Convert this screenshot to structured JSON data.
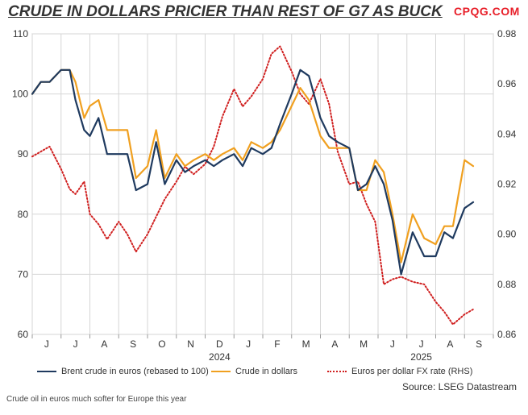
{
  "title": "CRUDE IN DOLLARS PRICIER THAN REST OF G7 AS BUCK",
  "brand": "CPQG.COM",
  "source": "Source: LSEG Datastream",
  "footer": "Crude oil in euros much softer for Europe this year",
  "chart_data": {
    "type": "line",
    "x_axis": {
      "months": [
        "J",
        "J",
        "A",
        "S",
        "O",
        "N",
        "D",
        "J",
        "F",
        "M",
        "A",
        "M",
        "J",
        "J",
        "A",
        "S"
      ],
      "years": [
        "2024",
        "2025"
      ]
    },
    "y_left": {
      "ylim": [
        60,
        110
      ],
      "ticks": [
        60,
        70,
        80,
        90,
        100,
        110
      ]
    },
    "y_right": {
      "ylim": [
        0.86,
        0.98
      ],
      "ticks": [
        0.86,
        0.88,
        0.9,
        0.92,
        0.94,
        0.96,
        0.98
      ]
    },
    "grid": true,
    "legend_position": "bottom",
    "series": [
      {
        "name": "Brent crude in euros (rebased to 100)",
        "color": "#1f3a5f",
        "style": "solid",
        "axis": "left",
        "x": [
          0,
          0.3,
          0.6,
          1,
          1.3,
          1.5,
          1.8,
          2,
          2.3,
          2.6,
          3,
          3.3,
          3.6,
          4,
          4.3,
          4.6,
          5,
          5.3,
          5.6,
          6,
          6.3,
          6.6,
          7,
          7.3,
          7.6,
          8,
          8.3,
          8.6,
          9,
          9.3,
          9.6,
          10,
          10.3,
          10.6,
          11,
          11.3,
          11.6,
          11.9,
          12.2,
          12.5,
          12.8,
          13.2,
          13.6,
          14,
          14.3,
          14.6,
          15,
          15.3
        ],
        "y": [
          100,
          102,
          102,
          104,
          104,
          99,
          94,
          93,
          96,
          90,
          90,
          90,
          84,
          85,
          92,
          85,
          89,
          87,
          88,
          89,
          88,
          89,
          90,
          88,
          91,
          90,
          91,
          95,
          100,
          104,
          103,
          96,
          93,
          92,
          91,
          84,
          85,
          88,
          85,
          79,
          70,
          77,
          73,
          73,
          77,
          76,
          81,
          82
        ]
      },
      {
        "name": "Crude in dollars",
        "color": "#f0a020",
        "style": "solid",
        "axis": "left",
        "x": [
          0,
          0.3,
          0.6,
          1,
          1.3,
          1.5,
          1.8,
          2,
          2.3,
          2.6,
          3,
          3.3,
          3.6,
          4,
          4.3,
          4.6,
          5,
          5.3,
          5.6,
          6,
          6.3,
          6.6,
          7,
          7.3,
          7.6,
          8,
          8.3,
          8.6,
          9,
          9.3,
          9.6,
          10,
          10.3,
          10.6,
          11,
          11.3,
          11.6,
          11.9,
          12.2,
          12.5,
          12.8,
          13.2,
          13.6,
          14,
          14.3,
          14.6,
          15,
          15.3
        ],
        "y": [
          100,
          102,
          102,
          104,
          104,
          102,
          96,
          98,
          99,
          94,
          94,
          94,
          86,
          88,
          94,
          86,
          90,
          88,
          89,
          90,
          89,
          90,
          91,
          89,
          92,
          91,
          92,
          94,
          98,
          101,
          99,
          93,
          91,
          91,
          91,
          84,
          84,
          89,
          87,
          80,
          72,
          80,
          76,
          75,
          78,
          78,
          89,
          88
        ]
      },
      {
        "name": "Euros per dollar FX rate (RHS)",
        "color": "#d02020",
        "style": "dotted",
        "axis": "right",
        "x": [
          0,
          0.3,
          0.6,
          1,
          1.3,
          1.5,
          1.8,
          2,
          2.3,
          2.6,
          3,
          3.3,
          3.6,
          4,
          4.3,
          4.6,
          5,
          5.3,
          5.6,
          6,
          6.3,
          6.6,
          7,
          7.3,
          7.6,
          8,
          8.3,
          8.6,
          9,
          9.3,
          9.6,
          10,
          10.3,
          10.6,
          11,
          11.3,
          11.6,
          11.9,
          12.2,
          12.5,
          12.8,
          13.2,
          13.6,
          14,
          14.3,
          14.6,
          15,
          15.3
        ],
        "y": [
          0.931,
          0.933,
          0.935,
          0.926,
          0.918,
          0.916,
          0.921,
          0.908,
          0.904,
          0.898,
          0.905,
          0.9,
          0.893,
          0.9,
          0.907,
          0.914,
          0.921,
          0.927,
          0.924,
          0.928,
          0.935,
          0.947,
          0.958,
          0.951,
          0.955,
          0.962,
          0.972,
          0.975,
          0.965,
          0.956,
          0.952,
          0.962,
          0.952,
          0.933,
          0.92,
          0.921,
          0.912,
          0.905,
          0.88,
          0.882,
          0.883,
          0.881,
          0.88,
          0.873,
          0.869,
          0.864,
          0.868,
          0.87
        ]
      }
    ]
  }
}
